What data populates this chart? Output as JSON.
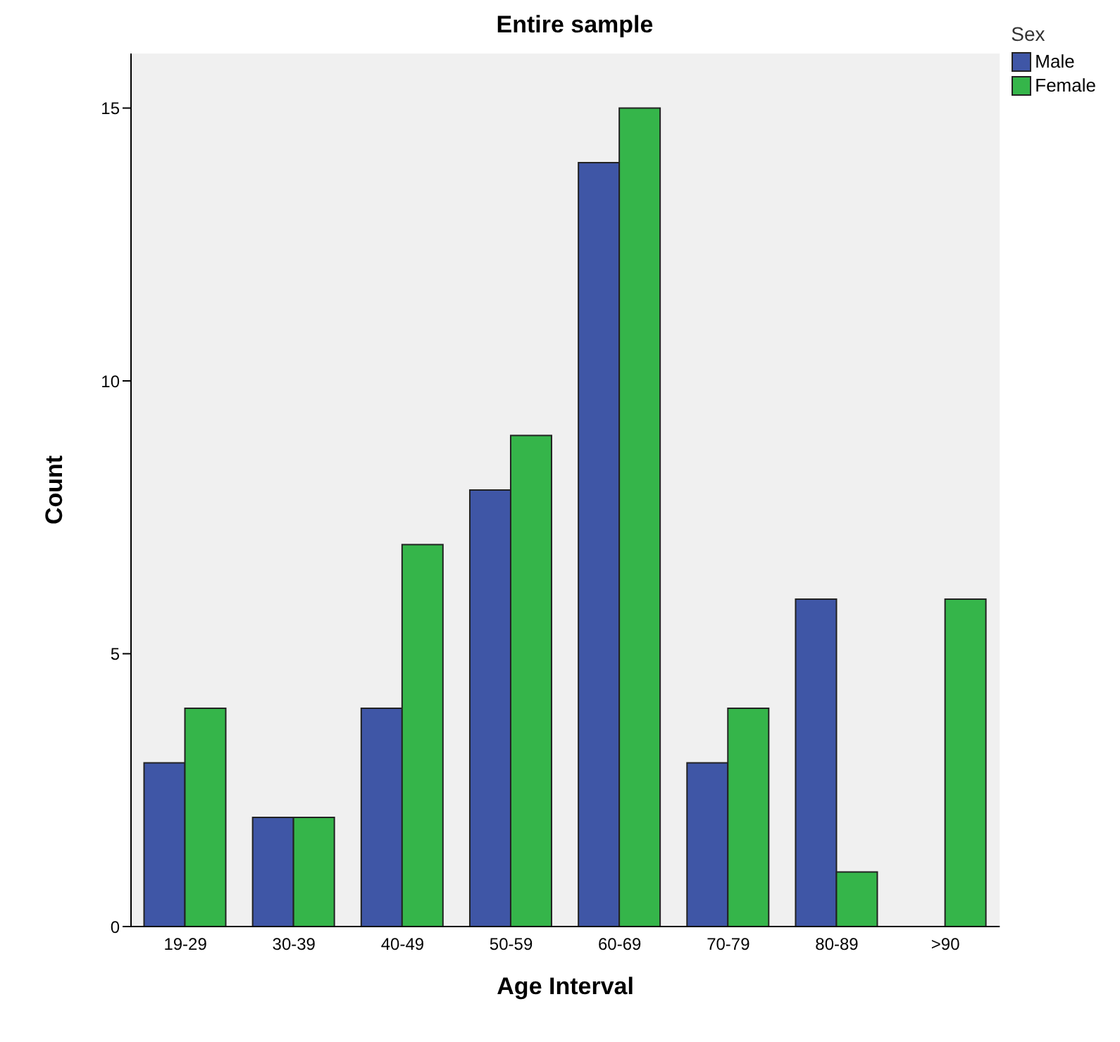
{
  "chart_data": {
    "type": "bar",
    "title": "Entire sample",
    "xlabel": "Age Interval",
    "ylabel": "Count",
    "legend_title": "Sex",
    "categories": [
      "19-29",
      "30-39",
      "40-49",
      "50-59",
      "60-69",
      "70-79",
      "80-89",
      ">90"
    ],
    "series": [
      {
        "name": "Male",
        "color": "#3f56a6",
        "values": [
          3,
          2,
          4,
          8,
          14,
          3,
          6,
          0
        ]
      },
      {
        "name": "Female",
        "color": "#35b54a",
        "values": [
          4,
          2,
          7,
          9,
          15,
          4,
          1,
          6
        ]
      }
    ],
    "ylim": [
      0,
      16
    ],
    "yticks": [
      0,
      5,
      10,
      15
    ],
    "grid": false,
    "legend": "top right"
  }
}
